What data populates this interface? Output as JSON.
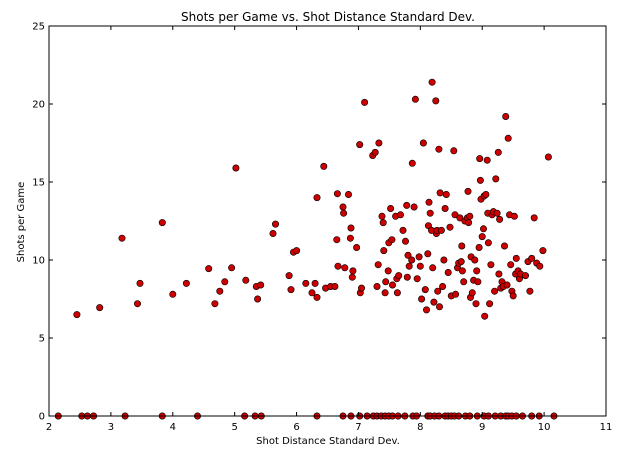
{
  "chart_data": {
    "type": "scatter",
    "title": "Shots per Game vs. Shot Distance Standard Dev.",
    "xlabel": "Shot Distance Standard Dev.",
    "ylabel": "Shots per Game",
    "xlim": [
      2,
      11
    ],
    "ylim": [
      0,
      25
    ],
    "xticks": [
      2,
      3,
      4,
      5,
      6,
      7,
      8,
      9,
      10,
      11
    ],
    "yticks": [
      0,
      5,
      10,
      15,
      20,
      25
    ],
    "grid": false,
    "legend": "none",
    "marker_color": "#cc0000",
    "marker_edge_color": "#000000",
    "points": [
      [
        2.15,
        0
      ],
      [
        2.53,
        0
      ],
      [
        2.62,
        0
      ],
      [
        2.72,
        0
      ],
      [
        3.23,
        0
      ],
      [
        3.83,
        0
      ],
      [
        4.4,
        0
      ],
      [
        5.16,
        0
      ],
      [
        5.33,
        0
      ],
      [
        5.43,
        0
      ],
      [
        6.33,
        0
      ],
      [
        6.75,
        0
      ],
      [
        6.88,
        0
      ],
      [
        7.02,
        0
      ],
      [
        7.14,
        0
      ],
      [
        7.24,
        0
      ],
      [
        7.3,
        0
      ],
      [
        7.37,
        0
      ],
      [
        7.43,
        0
      ],
      [
        7.49,
        0
      ],
      [
        7.55,
        0
      ],
      [
        7.64,
        0
      ],
      [
        7.75,
        0
      ],
      [
        7.88,
        0
      ],
      [
        7.94,
        0
      ],
      [
        8.12,
        0
      ],
      [
        8.16,
        0
      ],
      [
        8.23,
        0
      ],
      [
        8.3,
        0
      ],
      [
        8.4,
        0
      ],
      [
        8.45,
        0
      ],
      [
        8.5,
        0
      ],
      [
        8.55,
        0
      ],
      [
        8.62,
        0
      ],
      [
        8.73,
        0
      ],
      [
        8.8,
        0
      ],
      [
        8.92,
        0
      ],
      [
        9.03,
        0
      ],
      [
        9.1,
        0
      ],
      [
        9.21,
        0
      ],
      [
        9.3,
        0
      ],
      [
        9.38,
        0
      ],
      [
        9.42,
        0
      ],
      [
        9.48,
        0
      ],
      [
        9.55,
        0
      ],
      [
        9.65,
        0
      ],
      [
        9.8,
        0
      ],
      [
        9.92,
        0
      ],
      [
        10.16,
        0
      ],
      [
        2.45,
        6.5
      ],
      [
        2.82,
        6.95
      ],
      [
        3.18,
        11.4
      ],
      [
        3.43,
        7.2
      ],
      [
        3.47,
        8.5
      ],
      [
        3.83,
        12.4
      ],
      [
        4.0,
        7.8
      ],
      [
        4.22,
        8.5
      ],
      [
        4.58,
        9.45
      ],
      [
        4.68,
        7.2
      ],
      [
        4.76,
        8.0
      ],
      [
        4.84,
        8.6
      ],
      [
        4.95,
        9.5
      ],
      [
        5.02,
        15.9
      ],
      [
        5.18,
        8.7
      ],
      [
        5.35,
        8.3
      ],
      [
        5.37,
        7.5
      ],
      [
        5.42,
        8.4
      ],
      [
        5.62,
        11.7
      ],
      [
        5.66,
        12.3
      ],
      [
        5.88,
        9.0
      ],
      [
        5.91,
        8.1
      ],
      [
        5.95,
        10.5
      ],
      [
        6.0,
        10.6
      ],
      [
        6.15,
        8.5
      ],
      [
        6.25,
        7.9
      ],
      [
        6.3,
        8.5
      ],
      [
        6.33,
        7.6
      ],
      [
        6.33,
        14.0
      ],
      [
        6.44,
        16.0
      ],
      [
        6.47,
        8.2
      ],
      [
        6.55,
        8.3
      ],
      [
        6.62,
        8.3
      ],
      [
        6.65,
        11.3
      ],
      [
        6.66,
        14.25
      ],
      [
        6.67,
        9.6
      ],
      [
        6.75,
        13.4
      ],
      [
        6.76,
        13.0
      ],
      [
        6.78,
        9.5
      ],
      [
        6.84,
        14.2
      ],
      [
        6.87,
        11.4
      ],
      [
        6.88,
        12.05
      ],
      [
        6.9,
        8.9
      ],
      [
        6.91,
        9.3
      ],
      [
        6.97,
        10.8
      ],
      [
        7.02,
        17.4
      ],
      [
        7.03,
        7.9
      ],
      [
        7.05,
        8.2
      ],
      [
        7.1,
        20.1
      ],
      [
        7.23,
        16.7
      ],
      [
        7.27,
        16.9
      ],
      [
        7.3,
        8.3
      ],
      [
        7.32,
        9.7
      ],
      [
        7.33,
        17.5
      ],
      [
        7.38,
        12.8
      ],
      [
        7.4,
        12.4
      ],
      [
        7.41,
        10.6
      ],
      [
        7.43,
        7.9
      ],
      [
        7.44,
        8.6
      ],
      [
        7.48,
        9.3
      ],
      [
        7.49,
        11.1
      ],
      [
        7.52,
        13.3
      ],
      [
        7.54,
        11.3
      ],
      [
        7.55,
        8.4
      ],
      [
        7.6,
        12.8
      ],
      [
        7.62,
        8.8
      ],
      [
        7.63,
        7.9
      ],
      [
        7.65,
        9.0
      ],
      [
        7.68,
        12.9
      ],
      [
        7.72,
        11.9
      ],
      [
        7.76,
        11.2
      ],
      [
        7.78,
        13.5
      ],
      [
        7.79,
        8.9
      ],
      [
        7.8,
        10.3
      ],
      [
        7.82,
        9.6
      ],
      [
        7.86,
        10.0
      ],
      [
        7.87,
        16.2
      ],
      [
        7.9,
        13.4
      ],
      [
        7.92,
        20.3
      ],
      [
        7.95,
        8.8
      ],
      [
        7.98,
        10.2
      ],
      [
        8.0,
        9.6
      ],
      [
        8.02,
        7.5
      ],
      [
        8.05,
        17.5
      ],
      [
        8.08,
        8.1
      ],
      [
        8.1,
        6.8
      ],
      [
        8.12,
        10.4
      ],
      [
        8.13,
        12.2
      ],
      [
        8.14,
        13.7
      ],
      [
        8.16,
        13.0
      ],
      [
        8.18,
        11.9
      ],
      [
        8.19,
        21.4
      ],
      [
        8.2,
        9.5
      ],
      [
        8.22,
        7.3
      ],
      [
        8.25,
        20.2
      ],
      [
        8.26,
        11.7
      ],
      [
        8.27,
        11.9
      ],
      [
        8.28,
        8.0
      ],
      [
        8.3,
        17.1
      ],
      [
        8.31,
        7.0
      ],
      [
        8.32,
        14.3
      ],
      [
        8.34,
        11.9
      ],
      [
        8.36,
        8.3
      ],
      [
        8.38,
        10.0
      ],
      [
        8.4,
        13.3
      ],
      [
        8.42,
        14.2
      ],
      [
        8.45,
        9.2
      ],
      [
        8.48,
        12.1
      ],
      [
        8.5,
        7.7
      ],
      [
        8.54,
        17.0
      ],
      [
        8.56,
        12.9
      ],
      [
        8.57,
        7.8
      ],
      [
        8.6,
        9.5
      ],
      [
        8.62,
        9.8
      ],
      [
        8.64,
        12.7
      ],
      [
        8.66,
        9.9
      ],
      [
        8.67,
        10.9
      ],
      [
        8.68,
        9.3
      ],
      [
        8.7,
        8.6
      ],
      [
        8.72,
        12.5
      ],
      [
        8.76,
        12.7
      ],
      [
        8.77,
        14.4
      ],
      [
        8.78,
        12.4
      ],
      [
        8.8,
        12.8
      ],
      [
        8.81,
        7.6
      ],
      [
        8.82,
        10.2
      ],
      [
        8.84,
        7.9
      ],
      [
        8.86,
        8.7
      ],
      [
        8.88,
        10.0
      ],
      [
        8.9,
        7.2
      ],
      [
        8.91,
        9.3
      ],
      [
        8.93,
        8.6
      ],
      [
        8.95,
        10.8
      ],
      [
        8.96,
        16.5
      ],
      [
        8.97,
        15.1
      ],
      [
        8.98,
        13.9
      ],
      [
        9.0,
        11.5
      ],
      [
        9.02,
        12.0
      ],
      [
        9.03,
        14.1
      ],
      [
        9.04,
        6.4
      ],
      [
        9.06,
        14.2
      ],
      [
        9.08,
        16.4
      ],
      [
        9.09,
        13.0
      ],
      [
        9.1,
        11.1
      ],
      [
        9.12,
        7.2
      ],
      [
        9.14,
        9.7
      ],
      [
        9.16,
        12.9
      ],
      [
        9.18,
        13.1
      ],
      [
        9.2,
        8.0
      ],
      [
        9.22,
        15.2
      ],
      [
        9.24,
        13.0
      ],
      [
        9.26,
        16.9
      ],
      [
        9.27,
        9.1
      ],
      [
        9.28,
        12.6
      ],
      [
        9.3,
        8.2
      ],
      [
        9.32,
        8.6
      ],
      [
        9.34,
        8.3
      ],
      [
        9.36,
        10.9
      ],
      [
        9.38,
        19.2
      ],
      [
        9.4,
        8.4
      ],
      [
        9.42,
        17.8
      ],
      [
        9.44,
        12.9
      ],
      [
        9.46,
        9.7
      ],
      [
        9.48,
        8.0
      ],
      [
        9.5,
        7.7
      ],
      [
        9.52,
        12.8
      ],
      [
        9.54,
        9.1
      ],
      [
        9.55,
        10.1
      ],
      [
        9.58,
        9.3
      ],
      [
        9.6,
        8.8
      ],
      [
        9.62,
        9.1
      ],
      [
        9.7,
        9.0
      ],
      [
        9.74,
        9.9
      ],
      [
        9.77,
        8.0
      ],
      [
        9.8,
        10.1
      ],
      [
        9.84,
        12.7
      ],
      [
        9.88,
        9.8
      ],
      [
        9.93,
        9.6
      ],
      [
        9.98,
        10.6
      ],
      [
        10.07,
        16.6
      ]
    ]
  }
}
